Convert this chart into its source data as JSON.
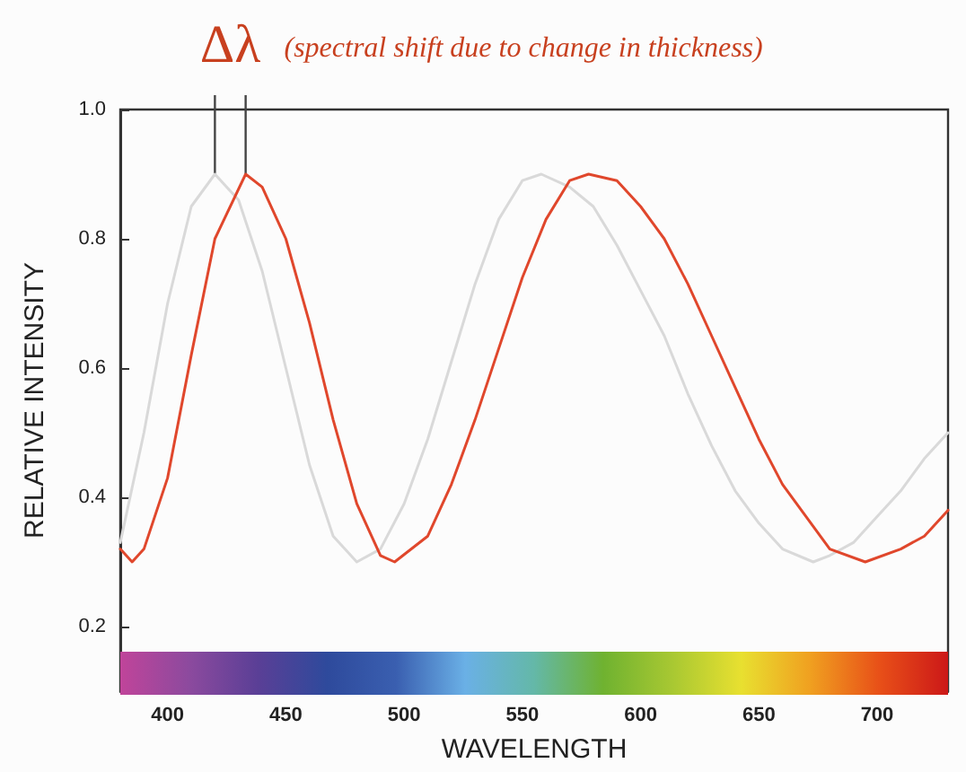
{
  "chart_data": {
    "type": "line",
    "xlabel": "WAVELENGTH",
    "ylabel": "RELATIVE INTENSITY",
    "annotations": [
      {
        "text": "Δλ",
        "x": 433,
        "y": 0.9
      },
      "(spectral shift due to change in thickness)"
    ],
    "xlim": [
      380,
      730
    ],
    "xticks": [
      400,
      450,
      500,
      550,
      600,
      650,
      700
    ],
    "ylim": [
      0.1,
      1.0
    ],
    "yticks": [
      0.2,
      0.4,
      0.6,
      0.8,
      {
        "value": 1,
        "label": "1.0"
      }
    ],
    "grid": false,
    "marker": "none",
    "line_style": "solid",
    "series": [
      {
        "color": "#d9d9d9",
        "x": [
          380,
          390,
          400,
          410,
          420,
          430,
          440,
          450,
          460,
          470,
          480,
          490,
          500,
          510,
          520,
          530,
          540,
          550,
          558,
          570,
          580,
          590,
          600,
          610,
          620,
          630,
          640,
          650,
          660,
          673,
          680,
          690,
          700,
          710,
          720,
          730
        ],
        "values": [
          0.33,
          0.5,
          0.7,
          0.85,
          0.9,
          0.86,
          0.75,
          0.6,
          0.45,
          0.34,
          0.3,
          0.32,
          0.39,
          0.49,
          0.61,
          0.73,
          0.83,
          0.89,
          0.9,
          0.88,
          0.85,
          0.79,
          0.72,
          0.65,
          0.56,
          0.48,
          0.41,
          0.36,
          0.32,
          0.3,
          0.31,
          0.33,
          0.37,
          0.41,
          0.46,
          0.5
        ]
      },
      {
        "color": "#e0472c",
        "x": [
          380,
          385,
          390,
          400,
          410,
          420,
          433,
          440,
          450,
          460,
          470,
          480,
          490,
          496,
          510,
          520,
          530,
          540,
          550,
          560,
          570,
          578,
          590,
          600,
          610,
          620,
          630,
          640,
          650,
          660,
          670,
          680,
          695,
          710,
          720,
          730
        ],
        "values": [
          0.32,
          0.3,
          0.32,
          0.43,
          0.62,
          0.8,
          0.9,
          0.88,
          0.8,
          0.67,
          0.52,
          0.39,
          0.31,
          0.3,
          0.34,
          0.42,
          0.52,
          0.63,
          0.74,
          0.83,
          0.89,
          0.9,
          0.89,
          0.85,
          0.8,
          0.73,
          0.65,
          0.57,
          0.49,
          0.42,
          0.37,
          0.32,
          0.3,
          0.32,
          0.34,
          0.38
        ]
      }
    ]
  }
}
